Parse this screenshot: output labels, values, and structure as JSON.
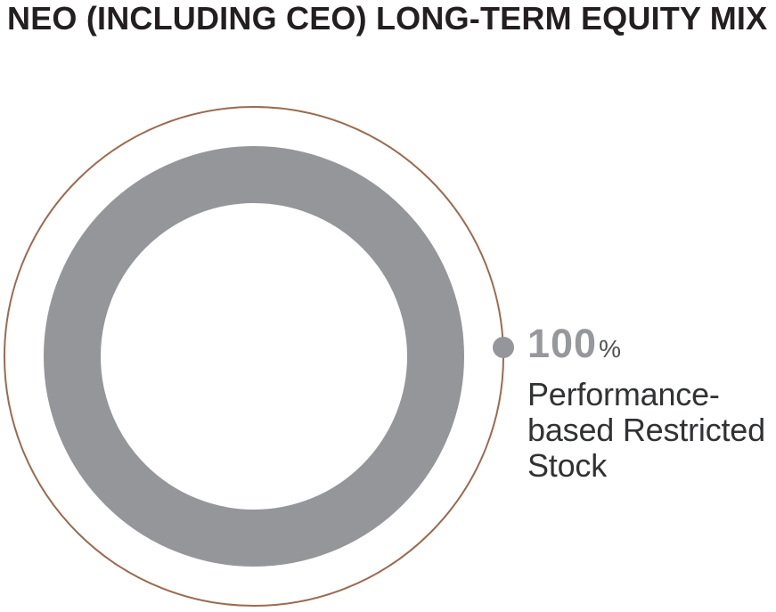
{
  "header": {
    "title": "NEO (INCLUDING CEO) LONG-TERM EQUITY MIX"
  },
  "chart_data": {
    "type": "pie",
    "variant": "donut",
    "title": "NEO (INCLUDING CEO) LONG-TERM EQUITY MIX",
    "categories": [
      "Performance-based Restricted Stock"
    ],
    "values": [
      100
    ],
    "unit": "%",
    "legend_position": "right",
    "grid": false,
    "colors": {
      "slice": "#94969a",
      "accent_outline": "#9a6b50",
      "marker": "#94969a"
    }
  },
  "callout": {
    "value": "100",
    "percent_sign": "%",
    "label": "Performance-based Restricted Stock",
    "lines": [
      "Performance-",
      "based Restricted",
      "Stock"
    ]
  },
  "colors": {
    "title_text": "#231f20",
    "value_text": "#97989c",
    "percent_text": "#505155",
    "label_text": "#313234",
    "slice_gray": "#94969a",
    "accent_brown": "#9a6b50",
    "background": "#ffffff"
  }
}
